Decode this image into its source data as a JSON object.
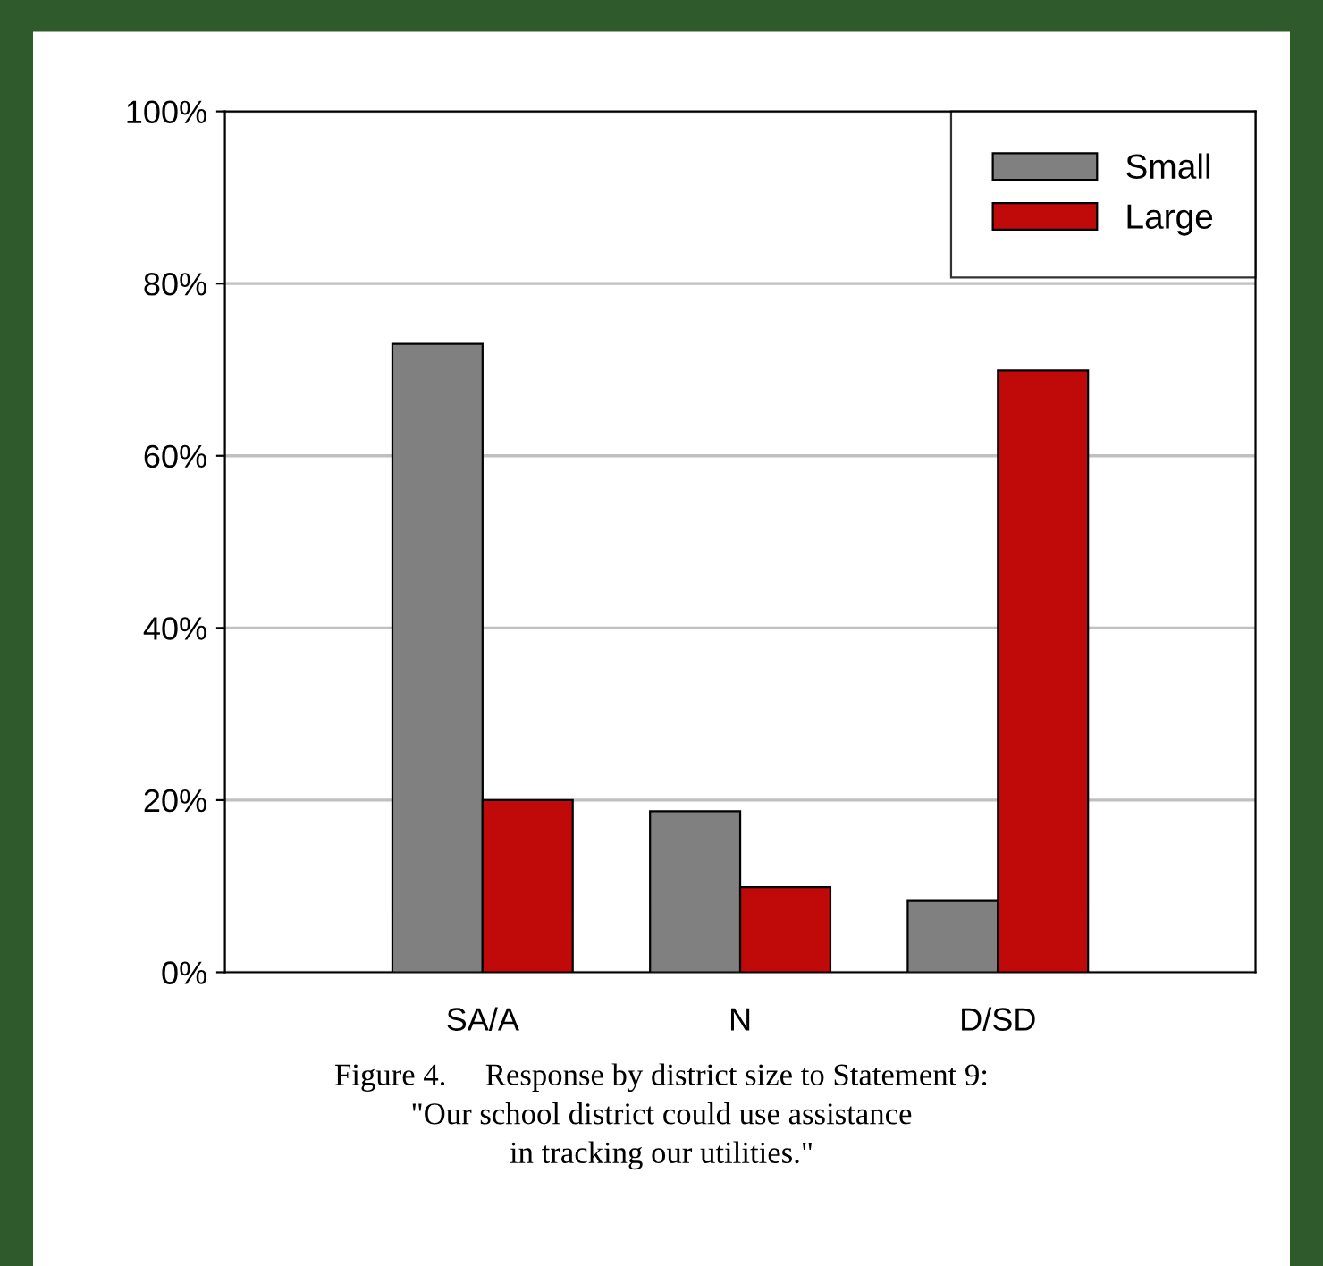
{
  "chart_data": {
    "type": "bar",
    "categories": [
      "SA/A",
      "N",
      "D/SD"
    ],
    "series": [
      {
        "name": "Small",
        "color": "#808080",
        "values": [
          73,
          18.7,
          8.3
        ]
      },
      {
        "name": "Large",
        "color": "#c00a0a",
        "values": [
          20,
          9.9,
          69.9
        ]
      }
    ],
    "ylim": [
      0,
      100
    ],
    "yticks": [
      {
        "value": 0,
        "label": "0%"
      },
      {
        "value": 20,
        "label": "20%"
      },
      {
        "value": 40,
        "label": "40%"
      },
      {
        "value": 60,
        "label": "60%"
      },
      {
        "value": 80,
        "label": "80%"
      },
      {
        "value": 100,
        "label": "100%"
      }
    ],
    "grid": "y",
    "legend": "top right",
    "annotations": [
      "Figure 4.     Response by district size to Statement 9:\n\"Our school district could use assistance\nin tracking our utilities.\""
    ]
  }
}
